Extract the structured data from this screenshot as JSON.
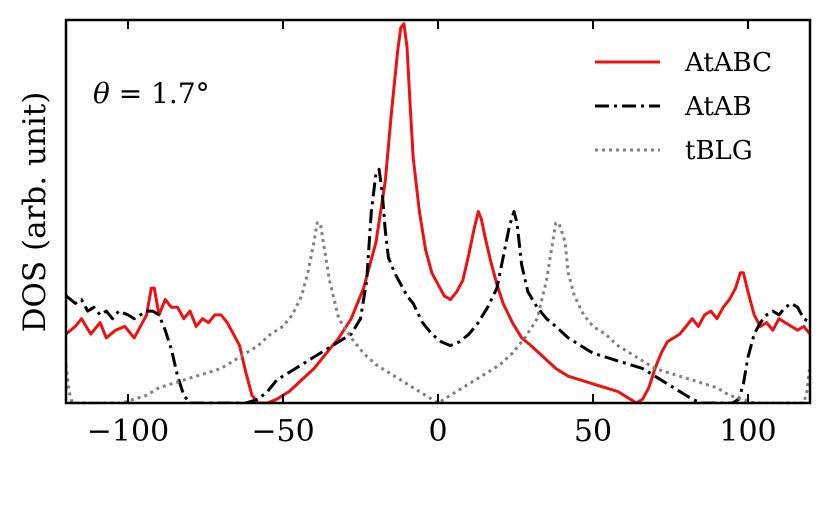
{
  "chart_data": {
    "type": "line",
    "title": "",
    "xlabel": "",
    "ylabel": "DOS (arb. unit)",
    "xlim": [
      -120,
      120
    ],
    "ylim": [
      0,
      1.0
    ],
    "x_ticks": [
      -100,
      -50,
      0,
      50,
      100
    ],
    "x_tick_labels": [
      "−100",
      "−50",
      "0",
      "50",
      "100"
    ],
    "y_ticks_shown": false,
    "grid": false,
    "legend_position": "top-right",
    "annotation": {
      "theta_symbol": "θ",
      "rest": " = 1.7°"
    },
    "series": [
      {
        "name": "AtABC",
        "color": "#ee1111",
        "dash": "solid",
        "points": [
          [
            -120,
            0.18
          ],
          [
            -117,
            0.2
          ],
          [
            -115,
            0.22
          ],
          [
            -112,
            0.18
          ],
          [
            -109,
            0.21
          ],
          [
            -107,
            0.17
          ],
          [
            -104,
            0.19
          ],
          [
            -101,
            0.2
          ],
          [
            -98,
            0.17
          ],
          [
            -96,
            0.2
          ],
          [
            -94,
            0.23
          ],
          [
            -92.5,
            0.3
          ],
          [
            -91.5,
            0.3
          ],
          [
            -90,
            0.23
          ],
          [
            -88,
            0.27
          ],
          [
            -86,
            0.25
          ],
          [
            -84,
            0.25
          ],
          [
            -82,
            0.22
          ],
          [
            -80,
            0.24
          ],
          [
            -78,
            0.2
          ],
          [
            -76,
            0.22
          ],
          [
            -74,
            0.21
          ],
          [
            -72,
            0.23
          ],
          [
            -70,
            0.23
          ],
          [
            -68,
            0.21
          ],
          [
            -66,
            0.18
          ],
          [
            -64,
            0.15
          ],
          [
            -62,
            0.08
          ],
          [
            -60,
            0.02
          ],
          [
            -58,
            0.0
          ],
          [
            -55,
            0.0
          ],
          [
            -52,
            0.01
          ],
          [
            -48,
            0.03
          ],
          [
            -44,
            0.06
          ],
          [
            -40,
            0.09
          ],
          [
            -36,
            0.13
          ],
          [
            -32,
            0.17
          ],
          [
            -28,
            0.22
          ],
          [
            -24,
            0.3
          ],
          [
            -20,
            0.42
          ],
          [
            -17,
            0.58
          ],
          [
            -15,
            0.76
          ],
          [
            -13,
            0.92
          ],
          [
            -12,
            0.98
          ],
          [
            -11,
            0.99
          ],
          [
            -10,
            0.93
          ],
          [
            -9,
            0.78
          ],
          [
            -8,
            0.64
          ],
          [
            -6,
            0.5
          ],
          [
            -4,
            0.4
          ],
          [
            -2,
            0.34
          ],
          [
            0,
            0.31
          ],
          [
            2,
            0.28
          ],
          [
            4,
            0.27
          ],
          [
            6,
            0.29
          ],
          [
            8,
            0.32
          ],
          [
            10,
            0.39
          ],
          [
            11.5,
            0.45
          ],
          [
            13,
            0.5
          ],
          [
            14,
            0.48
          ],
          [
            15,
            0.44
          ],
          [
            17,
            0.37
          ],
          [
            19,
            0.31
          ],
          [
            21,
            0.26
          ],
          [
            24,
            0.21
          ],
          [
            27,
            0.17
          ],
          [
            30,
            0.15
          ],
          [
            34,
            0.12
          ],
          [
            38,
            0.09
          ],
          [
            42,
            0.07
          ],
          [
            46,
            0.06
          ],
          [
            50,
            0.05
          ],
          [
            54,
            0.04
          ],
          [
            58,
            0.03
          ],
          [
            62,
            0.01
          ],
          [
            64,
            0.0
          ],
          [
            66,
            0.01
          ],
          [
            68,
            0.04
          ],
          [
            70,
            0.09
          ],
          [
            72,
            0.13
          ],
          [
            74,
            0.16
          ],
          [
            76,
            0.17
          ],
          [
            78,
            0.18
          ],
          [
            80,
            0.2
          ],
          [
            82,
            0.22
          ],
          [
            84,
            0.2
          ],
          [
            86,
            0.23
          ],
          [
            88,
            0.24
          ],
          [
            90,
            0.22
          ],
          [
            92,
            0.25
          ],
          [
            94,
            0.27
          ],
          [
            96,
            0.3
          ],
          [
            97.5,
            0.34
          ],
          [
            98.5,
            0.34
          ],
          [
            100,
            0.29
          ],
          [
            102,
            0.23
          ],
          [
            104,
            0.2
          ],
          [
            106,
            0.21
          ],
          [
            108,
            0.19
          ],
          [
            110,
            0.22
          ],
          [
            112,
            0.21
          ],
          [
            114,
            0.2
          ],
          [
            116,
            0.19
          ],
          [
            118,
            0.2
          ],
          [
            120,
            0.18
          ]
        ]
      },
      {
        "name": "AtAB",
        "color": "#000000",
        "dash": "dashdot",
        "points": [
          [
            -120,
            0.28
          ],
          [
            -117,
            0.26
          ],
          [
            -115,
            0.27
          ],
          [
            -113,
            0.24
          ],
          [
            -111,
            0.25
          ],
          [
            -109,
            0.23
          ],
          [
            -107,
            0.24
          ],
          [
            -105,
            0.22
          ],
          [
            -103,
            0.24
          ],
          [
            -100,
            0.23
          ],
          [
            -98,
            0.22
          ],
          [
            -96,
            0.23
          ],
          [
            -94,
            0.24
          ],
          [
            -92,
            0.24
          ],
          [
            -90,
            0.23
          ],
          [
            -88,
            0.19
          ],
          [
            -86,
            0.14
          ],
          [
            -84,
            0.07
          ],
          [
            -82,
            0.02
          ],
          [
            -80,
            0.0
          ],
          [
            -70,
            0.0
          ],
          [
            -62,
            0.0
          ],
          [
            -58,
            0.01
          ],
          [
            -55,
            0.03
          ],
          [
            -52,
            0.06
          ],
          [
            -48,
            0.08
          ],
          [
            -44,
            0.1
          ],
          [
            -40,
            0.12
          ],
          [
            -36,
            0.14
          ],
          [
            -32,
            0.16
          ],
          [
            -28,
            0.18
          ],
          [
            -25,
            0.22
          ],
          [
            -23,
            0.32
          ],
          [
            -21.5,
            0.5
          ],
          [
            -20,
            0.6
          ],
          [
            -19,
            0.61
          ],
          [
            -18,
            0.55
          ],
          [
            -17,
            0.45
          ],
          [
            -16,
            0.38
          ],
          [
            -14,
            0.34
          ],
          [
            -12,
            0.31
          ],
          [
            -10,
            0.28
          ],
          [
            -8,
            0.26
          ],
          [
            -5,
            0.21
          ],
          [
            -2,
            0.18
          ],
          [
            1,
            0.16
          ],
          [
            4,
            0.15
          ],
          [
            7,
            0.16
          ],
          [
            10,
            0.18
          ],
          [
            13,
            0.21
          ],
          [
            16,
            0.25
          ],
          [
            19,
            0.3
          ],
          [
            21,
            0.38
          ],
          [
            23,
            0.46
          ],
          [
            24.5,
            0.5
          ],
          [
            25.5,
            0.47
          ],
          [
            27,
            0.36
          ],
          [
            29,
            0.29
          ],
          [
            32,
            0.25
          ],
          [
            35,
            0.22
          ],
          [
            38,
            0.2
          ],
          [
            42,
            0.17
          ],
          [
            46,
            0.15
          ],
          [
            50,
            0.13
          ],
          [
            54,
            0.12
          ],
          [
            58,
            0.11
          ],
          [
            62,
            0.1
          ],
          [
            66,
            0.09
          ],
          [
            70,
            0.07
          ],
          [
            74,
            0.05
          ],
          [
            78,
            0.03
          ],
          [
            82,
            0.01
          ],
          [
            85,
            0.0
          ],
          [
            95,
            0.0
          ],
          [
            97,
            0.01
          ],
          [
            98.5,
            0.05
          ],
          [
            100,
            0.12
          ],
          [
            102,
            0.18
          ],
          [
            104,
            0.21
          ],
          [
            106,
            0.23
          ],
          [
            108,
            0.24
          ],
          [
            110,
            0.23
          ],
          [
            112,
            0.25
          ],
          [
            114,
            0.26
          ],
          [
            116,
            0.25
          ],
          [
            118,
            0.22
          ],
          [
            120,
            0.21
          ]
        ]
      },
      {
        "name": "tBLG",
        "color": "#808080",
        "dash": "dotted",
        "points": [
          [
            -120,
            0.1
          ],
          [
            -119,
            0.03
          ],
          [
            -118,
            0.0
          ],
          [
            -102,
            0.0
          ],
          [
            -98,
            0.01
          ],
          [
            -94,
            0.02
          ],
          [
            -90,
            0.04
          ],
          [
            -86,
            0.05
          ],
          [
            -82,
            0.06
          ],
          [
            -78,
            0.07
          ],
          [
            -74,
            0.08
          ],
          [
            -70,
            0.09
          ],
          [
            -66,
            0.11
          ],
          [
            -62,
            0.13
          ],
          [
            -58,
            0.15
          ],
          [
            -54,
            0.18
          ],
          [
            -50,
            0.2
          ],
          [
            -47,
            0.23
          ],
          [
            -44,
            0.28
          ],
          [
            -42,
            0.34
          ],
          [
            -40,
            0.42
          ],
          [
            -39,
            0.47
          ],
          [
            -38,
            0.47
          ],
          [
            -37,
            0.42
          ],
          [
            -35,
            0.32
          ],
          [
            -32,
            0.22
          ],
          [
            -28,
            0.17
          ],
          [
            -24,
            0.13
          ],
          [
            -20,
            0.1
          ],
          [
            -16,
            0.08
          ],
          [
            -12,
            0.06
          ],
          [
            -8,
            0.04
          ],
          [
            -4,
            0.02
          ],
          [
            0,
            0.0
          ],
          [
            4,
            0.02
          ],
          [
            8,
            0.04
          ],
          [
            12,
            0.06
          ],
          [
            16,
            0.08
          ],
          [
            20,
            0.1
          ],
          [
            24,
            0.13
          ],
          [
            28,
            0.17
          ],
          [
            32,
            0.22
          ],
          [
            35,
            0.32
          ],
          [
            37,
            0.42
          ],
          [
            38,
            0.47
          ],
          [
            39,
            0.47
          ],
          [
            41,
            0.42
          ],
          [
            42,
            0.34
          ],
          [
            44,
            0.28
          ],
          [
            47,
            0.23
          ],
          [
            50,
            0.2
          ],
          [
            54,
            0.18
          ],
          [
            58,
            0.15
          ],
          [
            62,
            0.13
          ],
          [
            66,
            0.11
          ],
          [
            70,
            0.09
          ],
          [
            74,
            0.08
          ],
          [
            78,
            0.07
          ],
          [
            82,
            0.06
          ],
          [
            86,
            0.05
          ],
          [
            90,
            0.04
          ],
          [
            94,
            0.02
          ],
          [
            98,
            0.01
          ],
          [
            102,
            0.0
          ],
          [
            118,
            0.0
          ],
          [
            119,
            0.03
          ],
          [
            120,
            0.1
          ]
        ]
      }
    ]
  }
}
